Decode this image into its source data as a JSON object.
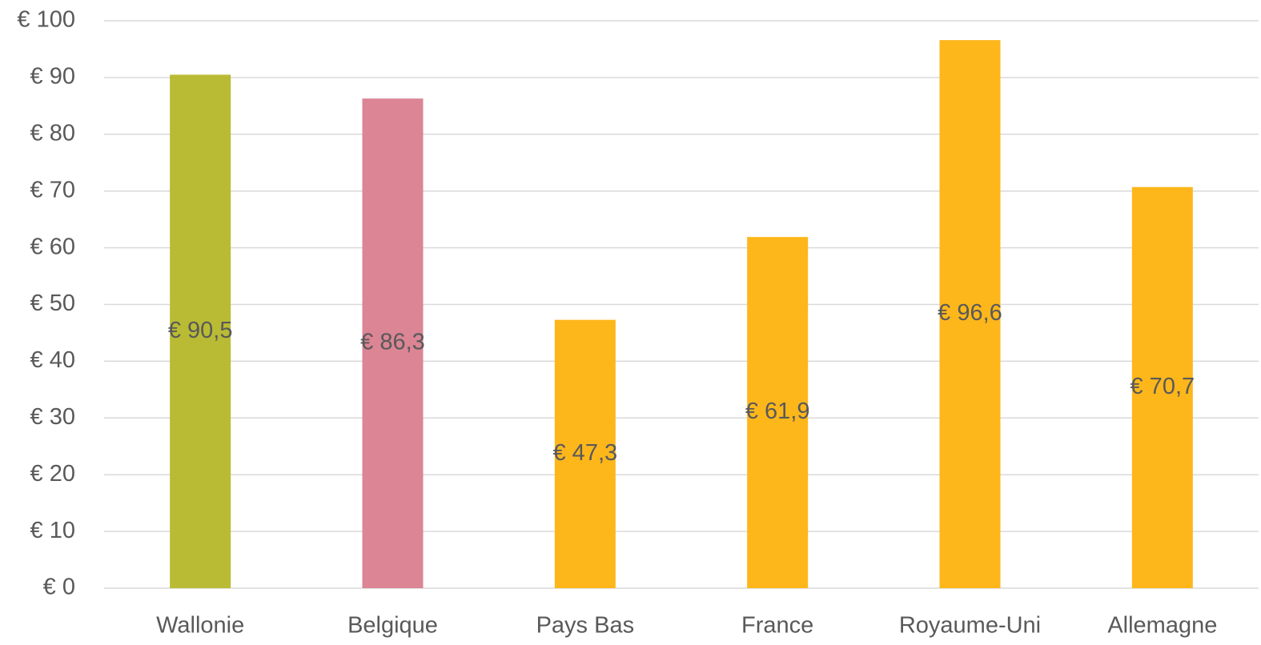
{
  "chart_data": {
    "type": "bar",
    "categories": [
      "Wallonie",
      "Belgique",
      "Pays Bas",
      "France",
      "Royaume-Uni",
      "Allemagne"
    ],
    "values": [
      90.5,
      86.3,
      47.3,
      61.9,
      96.6,
      70.7
    ],
    "value_labels": [
      "€ 90,5",
      "€ 86,3",
      "€ 47,3",
      "€ 61,9",
      "€ 96,6",
      "€ 70,7"
    ],
    "colors": [
      "#b9bb34",
      "#db8595",
      "#fdb71b",
      "#fdb71b",
      "#fdb71b",
      "#fdb71b"
    ],
    "ylim": [
      0,
      100
    ],
    "yticks": [
      {
        "value": 0,
        "label": "€ 0"
      },
      {
        "value": 10,
        "label": "€ 10"
      },
      {
        "value": 20,
        "label": "€ 20"
      },
      {
        "value": 30,
        "label": "€ 30"
      },
      {
        "value": 40,
        "label": "€ 40"
      },
      {
        "value": 50,
        "label": "€ 50"
      },
      {
        "value": 60,
        "label": "€ 60"
      },
      {
        "value": 70,
        "label": "€ 70"
      },
      {
        "value": 80,
        "label": "€ 80"
      },
      {
        "value": 90,
        "label": "€ 90"
      },
      {
        "value": 100,
        "label": "€ 100"
      }
    ],
    "grid": true
  }
}
